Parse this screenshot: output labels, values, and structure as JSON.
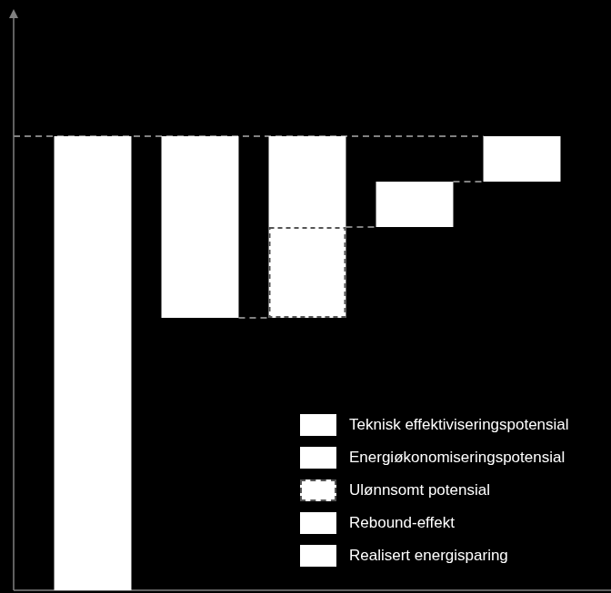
{
  "chart_data": {
    "type": "waterfall",
    "categories": [
      null,
      null,
      null,
      null,
      null
    ],
    "ylim": [
      0,
      63
    ],
    "tick_labels": false,
    "grid": false,
    "legend": "lower right",
    "series": [
      {
        "color": "#ffffff",
        "values": [
          [
            0,
            50
          ],
          null,
          null,
          null,
          null
        ]
      },
      {
        "name": "Teknisk effektiviseringspotensial",
        "color": "#ffffff",
        "values": [
          null,
          [
            30,
            50
          ],
          null,
          null,
          null
        ]
      },
      {
        "name": "Energiøkonomiseringspotensial",
        "color": "#ffffff",
        "values": [
          null,
          null,
          [
            40,
            50
          ],
          null,
          null
        ]
      },
      {
        "name": "Ulønnsomt potensial",
        "color": "#ffffff",
        "line_style": "dashed",
        "values": [
          null,
          null,
          [
            30,
            40
          ],
          null,
          null
        ]
      },
      {
        "name": "Rebound-effekt",
        "color": "#ffffff",
        "values": [
          null,
          null,
          null,
          [
            40,
            45
          ],
          null
        ]
      },
      {
        "name": "Realisert energisparing",
        "color": "#ffffff",
        "values": [
          null,
          null,
          null,
          null,
          [
            45,
            50
          ]
        ]
      }
    ]
  }
}
